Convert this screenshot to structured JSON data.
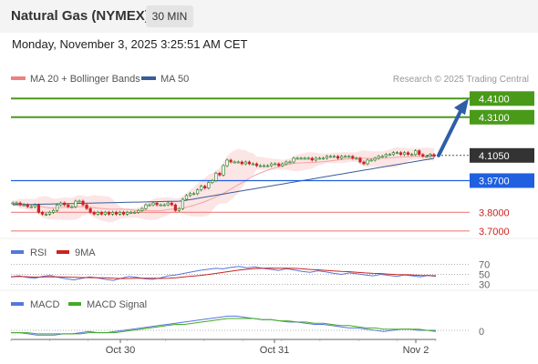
{
  "header": {
    "title": "Natural Gas (NYMEX)",
    "timeframe": "30 MIN",
    "datetime": "Monday, November 3, 2025 3:25:51 AM CET"
  },
  "legend": {
    "ma_bb": "MA 20 + Bollinger Bands",
    "ma50": "MA 50",
    "credit": "Research © 2025 Trading Central"
  },
  "rsi_legend": {
    "rsi": "RSI",
    "ma9": "9MA"
  },
  "macd_legend": {
    "macd": "MACD",
    "signal": "MACD Signal"
  },
  "colors": {
    "up": "#1e7a1e",
    "down": "#cc2222",
    "resistance": "#4a9a1a",
    "support_blue": "#1f5fe0",
    "support_red": "#f08080",
    "ma50": "#3b5b9a",
    "rsi": "#5577dd",
    "macd": "#5577dd",
    "signal": "#44aa22",
    "arrow": "#2f5ea8"
  },
  "chart_data": [
    {
      "type": "candlestick",
      "x_labels": [
        "Oct 30",
        "Oct 31",
        "Nov 2"
      ],
      "y_range": [
        3.66,
        4.47
      ],
      "last_price": 4.105,
      "levels": [
        {
          "label": "4.4100",
          "value": 4.41,
          "kind": "resistance"
        },
        {
          "label": "4.3100",
          "value": 4.31,
          "kind": "resistance"
        },
        {
          "label": "3.9700",
          "value": 3.97,
          "kind": "support"
        },
        {
          "label": "3.8000",
          "value": 3.8,
          "kind": "support"
        },
        {
          "label": "3.7000",
          "value": 3.7,
          "kind": "support"
        }
      ],
      "current_label": "4.1050",
      "close_series": [
        3.85,
        3.85,
        3.84,
        3.84,
        3.83,
        3.83,
        3.84,
        3.8,
        3.79,
        3.79,
        3.8,
        3.81,
        3.84,
        3.85,
        3.84,
        3.83,
        3.83,
        3.86,
        3.86,
        3.84,
        3.82,
        3.8,
        3.79,
        3.8,
        3.79,
        3.8,
        3.79,
        3.8,
        3.79,
        3.8,
        3.79,
        3.8,
        3.8,
        3.8,
        3.81,
        3.82,
        3.84,
        3.84,
        3.85,
        3.84,
        3.84,
        3.84,
        3.85,
        3.84,
        3.81,
        3.82,
        3.87,
        3.89,
        3.9,
        3.9,
        3.92,
        3.94,
        3.93,
        3.96,
        3.97,
        4.01,
        4.0,
        4.05,
        4.08,
        4.07,
        4.07,
        4.07,
        4.06,
        4.07,
        4.06,
        4.06,
        4.05,
        4.05,
        4.05,
        4.05,
        4.06,
        4.06,
        4.05,
        4.06,
        4.07,
        4.07,
        4.09,
        4.09,
        4.09,
        4.09,
        4.09,
        4.08,
        4.09,
        4.09,
        4.09,
        4.1,
        4.1,
        4.1,
        4.09,
        4.1,
        4.1,
        4.1,
        4.09,
        4.09,
        4.07,
        4.06,
        4.08,
        4.08,
        4.09,
        4.1,
        4.1,
        4.11,
        4.11,
        4.12,
        4.12,
        4.11,
        4.12,
        4.11,
        4.11,
        4.13,
        4.11,
        4.1,
        4.1,
        4.11,
        4.1
      ],
      "ma50_range": [
        3.84,
        4.09
      ],
      "projection": {
        "from": 4.105,
        "to": 4.41
      }
    },
    {
      "type": "line",
      "name": "RSI",
      "levels": [
        {
          "label": "70",
          "value": 70
        },
        {
          "label": "50",
          "value": 50
        },
        {
          "label": "30",
          "value": 30
        }
      ],
      "y_range": [
        0,
        100
      ],
      "rsi_values": [
        45,
        47,
        44,
        42,
        46,
        48,
        44,
        41,
        39,
        42,
        45,
        43,
        40,
        38,
        42,
        46,
        44,
        41,
        40,
        43,
        47,
        49,
        52,
        55,
        58,
        60,
        62,
        61,
        64,
        66,
        63,
        65,
        62,
        60,
        58,
        61,
        59,
        56,
        54,
        57,
        55,
        52,
        50,
        53,
        51,
        49,
        47,
        50,
        48,
        46,
        49,
        47,
        45,
        48,
        46
      ]
    },
    {
      "type": "line",
      "name": "MACD",
      "levels": [
        {
          "label": "0",
          "value": 0
        }
      ],
      "macd_values": [
        -0.02,
        -0.02,
        -0.03,
        -0.04,
        -0.04,
        -0.04,
        -0.03,
        -0.03,
        -0.02,
        -0.01,
        -0.02,
        -0.02,
        -0.01,
        0.0,
        0.01,
        0.02,
        0.03,
        0.04,
        0.05,
        0.06,
        0.07,
        0.08,
        0.09,
        0.1,
        0.11,
        0.12,
        0.12,
        0.11,
        0.1,
        0.09,
        0.09,
        0.08,
        0.07,
        0.07,
        0.06,
        0.05,
        0.05,
        0.04,
        0.03,
        0.02,
        0.02,
        0.01,
        0.0,
        -0.01,
        0.0,
        0.01,
        0.01,
        0.0,
        0.0,
        -0.01
      ],
      "signal_values": [
        -0.02,
        -0.02,
        -0.02,
        -0.03,
        -0.03,
        -0.03,
        -0.03,
        -0.03,
        -0.03,
        -0.02,
        -0.02,
        -0.02,
        -0.02,
        -0.01,
        0.0,
        0.01,
        0.02,
        0.03,
        0.04,
        0.05,
        0.05,
        0.06,
        0.07,
        0.08,
        0.09,
        0.1,
        0.1,
        0.1,
        0.1,
        0.09,
        0.09,
        0.08,
        0.08,
        0.07,
        0.07,
        0.06,
        0.06,
        0.05,
        0.04,
        0.04,
        0.03,
        0.02,
        0.02,
        0.01,
        0.01,
        0.01,
        0.01,
        0.01,
        0.0,
        0.0
      ]
    }
  ]
}
